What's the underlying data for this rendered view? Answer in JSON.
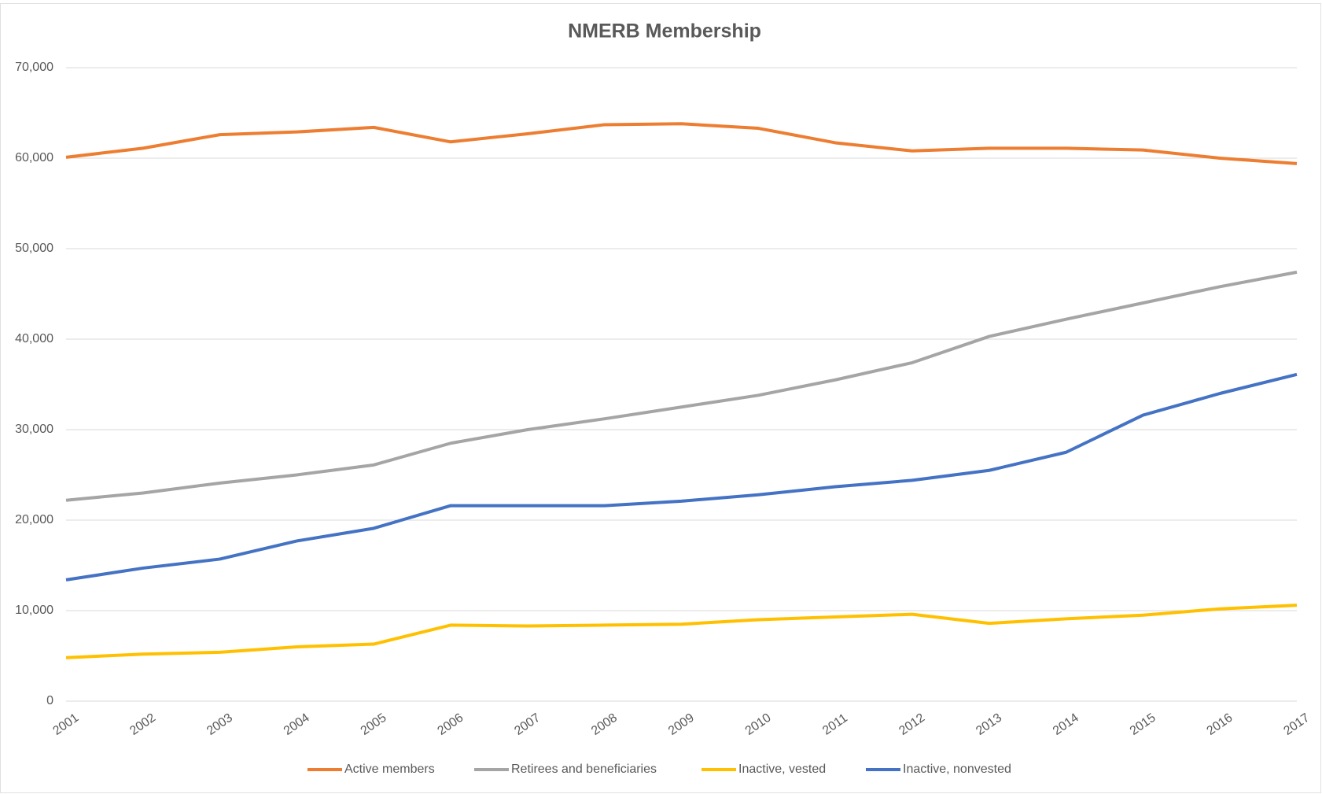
{
  "chart_data": {
    "type": "line",
    "title": "NMERB Membership",
    "categories": [
      "2001",
      "2002",
      "2003",
      "2004",
      "2005",
      "2006",
      "2007",
      "2008",
      "2009",
      "2010",
      "2011",
      "2012",
      "2013",
      "2014",
      "2015",
      "2016",
      "2017"
    ],
    "series": [
      {
        "name": "Active members",
        "color": "#ed7d31",
        "values": [
          60100,
          61100,
          62600,
          62900,
          63400,
          61800,
          62700,
          63700,
          63800,
          63300,
          61700,
          60800,
          61100,
          61100,
          60900,
          60000,
          59400
        ]
      },
      {
        "name": "Retirees and beneficiaries",
        "color": "#a5a5a5",
        "values": [
          22200,
          23000,
          24100,
          25000,
          26100,
          28500,
          30000,
          31200,
          32500,
          33800,
          35500,
          37400,
          40300,
          42200,
          44000,
          45800,
          47400
        ]
      },
      {
        "name": "Inactive, vested",
        "color": "#ffc000",
        "values": [
          4800,
          5200,
          5400,
          6000,
          6300,
          8400,
          8300,
          8400,
          8500,
          9000,
          9300,
          9600,
          8600,
          9100,
          9500,
          10200,
          10600
        ]
      },
      {
        "name": "Inactive, nonvested",
        "color": "#4472c4",
        "values": [
          13400,
          14700,
          15700,
          17700,
          19100,
          21600,
          21600,
          21600,
          22100,
          22800,
          23700,
          24400,
          25500,
          27500,
          31600,
          34000,
          36100
        ]
      }
    ],
    "ylim": [
      0,
      70000
    ],
    "yticks": [
      0,
      {
        "value": 10000,
        "label": "10,000"
      },
      {
        "value": 20000,
        "label": "20,000"
      },
      {
        "value": 30000,
        "label": "30,000"
      },
      {
        "value": 40000,
        "label": "40,000"
      },
      {
        "value": 50000,
        "label": "50,000"
      },
      {
        "value": 60000,
        "label": "60,000"
      },
      {
        "value": 70000,
        "label": "70,000"
      }
    ],
    "grid": true,
    "legend": "bottom"
  }
}
